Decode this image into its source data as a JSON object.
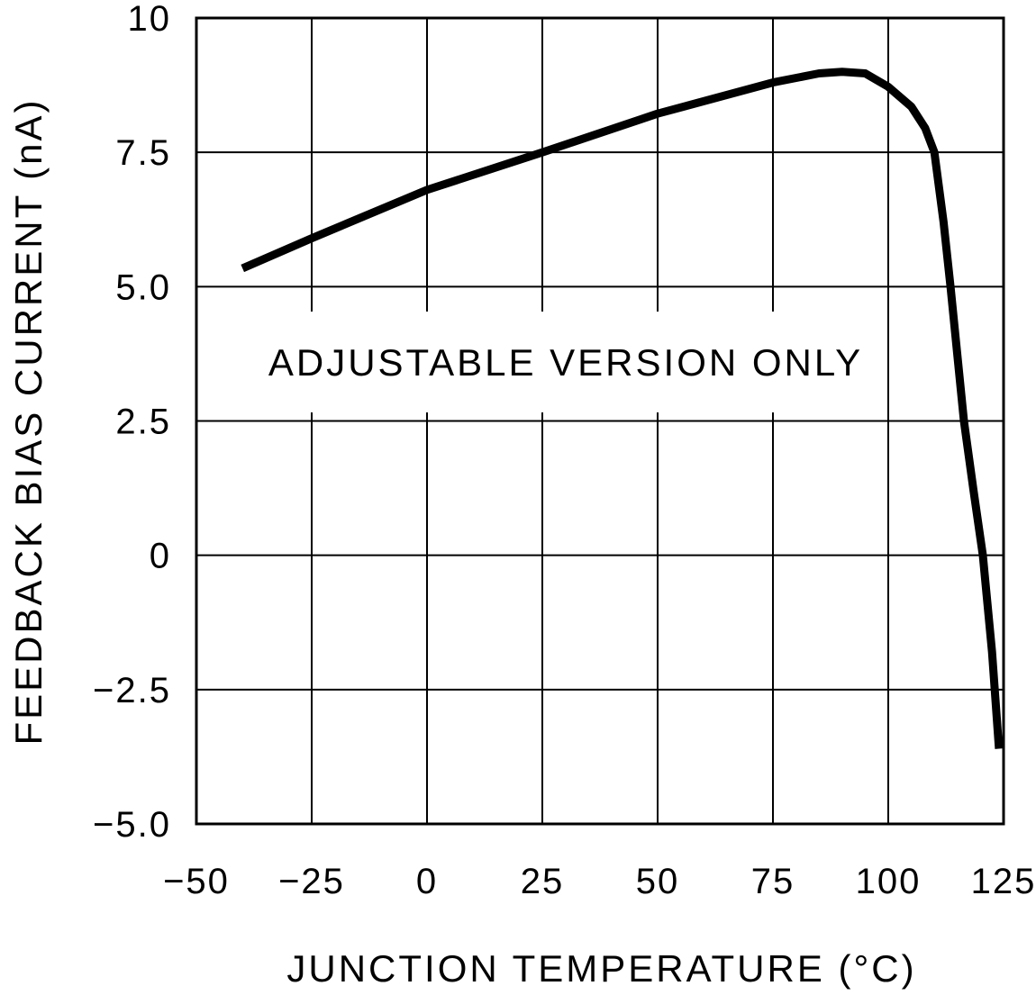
{
  "chart_data": {
    "type": "line",
    "title": "",
    "xlabel": "JUNCTION TEMPERATURE (°C)",
    "ylabel": "FEEDBACK BIAS CURRENT (nA)",
    "xlim": [
      -50,
      125
    ],
    "ylim": [
      -5,
      10
    ],
    "xticks": [
      -50,
      -25,
      0,
      25,
      50,
      75,
      100,
      125
    ],
    "xtick_labels": [
      "−50",
      "−25",
      "0",
      "25",
      "50",
      "75",
      "100",
      "125"
    ],
    "yticks": [
      -5,
      -2.5,
      0,
      2.5,
      5,
      7.5,
      10
    ],
    "ytick_labels": [
      "−5.0",
      "−2.5",
      "0",
      "2.5",
      "5.0",
      "7.5",
      "10"
    ],
    "grid": true,
    "annotation": "ADJUSTABLE VERSION ONLY",
    "series": [
      {
        "color": "#000000",
        "x": [
          -40,
          -25,
          0,
          25,
          50,
          75,
          85,
          90,
          95,
          100,
          105,
          108,
          110,
          112,
          113.5,
          116.4,
          118.5,
          120.5,
          122.5,
          124
        ],
        "y": [
          5.34,
          5.9,
          6.8,
          7.5,
          8.22,
          8.8,
          8.97,
          9.0,
          8.97,
          8.72,
          8.35,
          7.95,
          7.5,
          6.2,
          5.0,
          2.5,
          1.2,
          0.0,
          -1.8,
          -3.6
        ]
      }
    ]
  }
}
